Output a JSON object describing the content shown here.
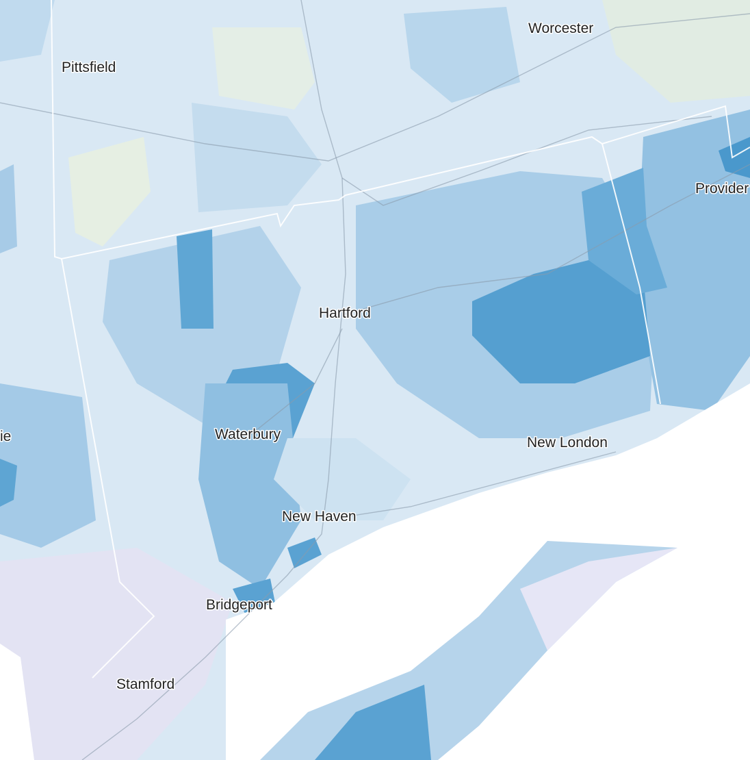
{
  "map": {
    "labels": [
      "Pittsfield",
      "Worcester",
      "Provider",
      "Hartford",
      "Waterbury",
      "New London",
      "New Haven",
      "Bridgeport",
      "Stamford",
      "ie"
    ]
  }
}
